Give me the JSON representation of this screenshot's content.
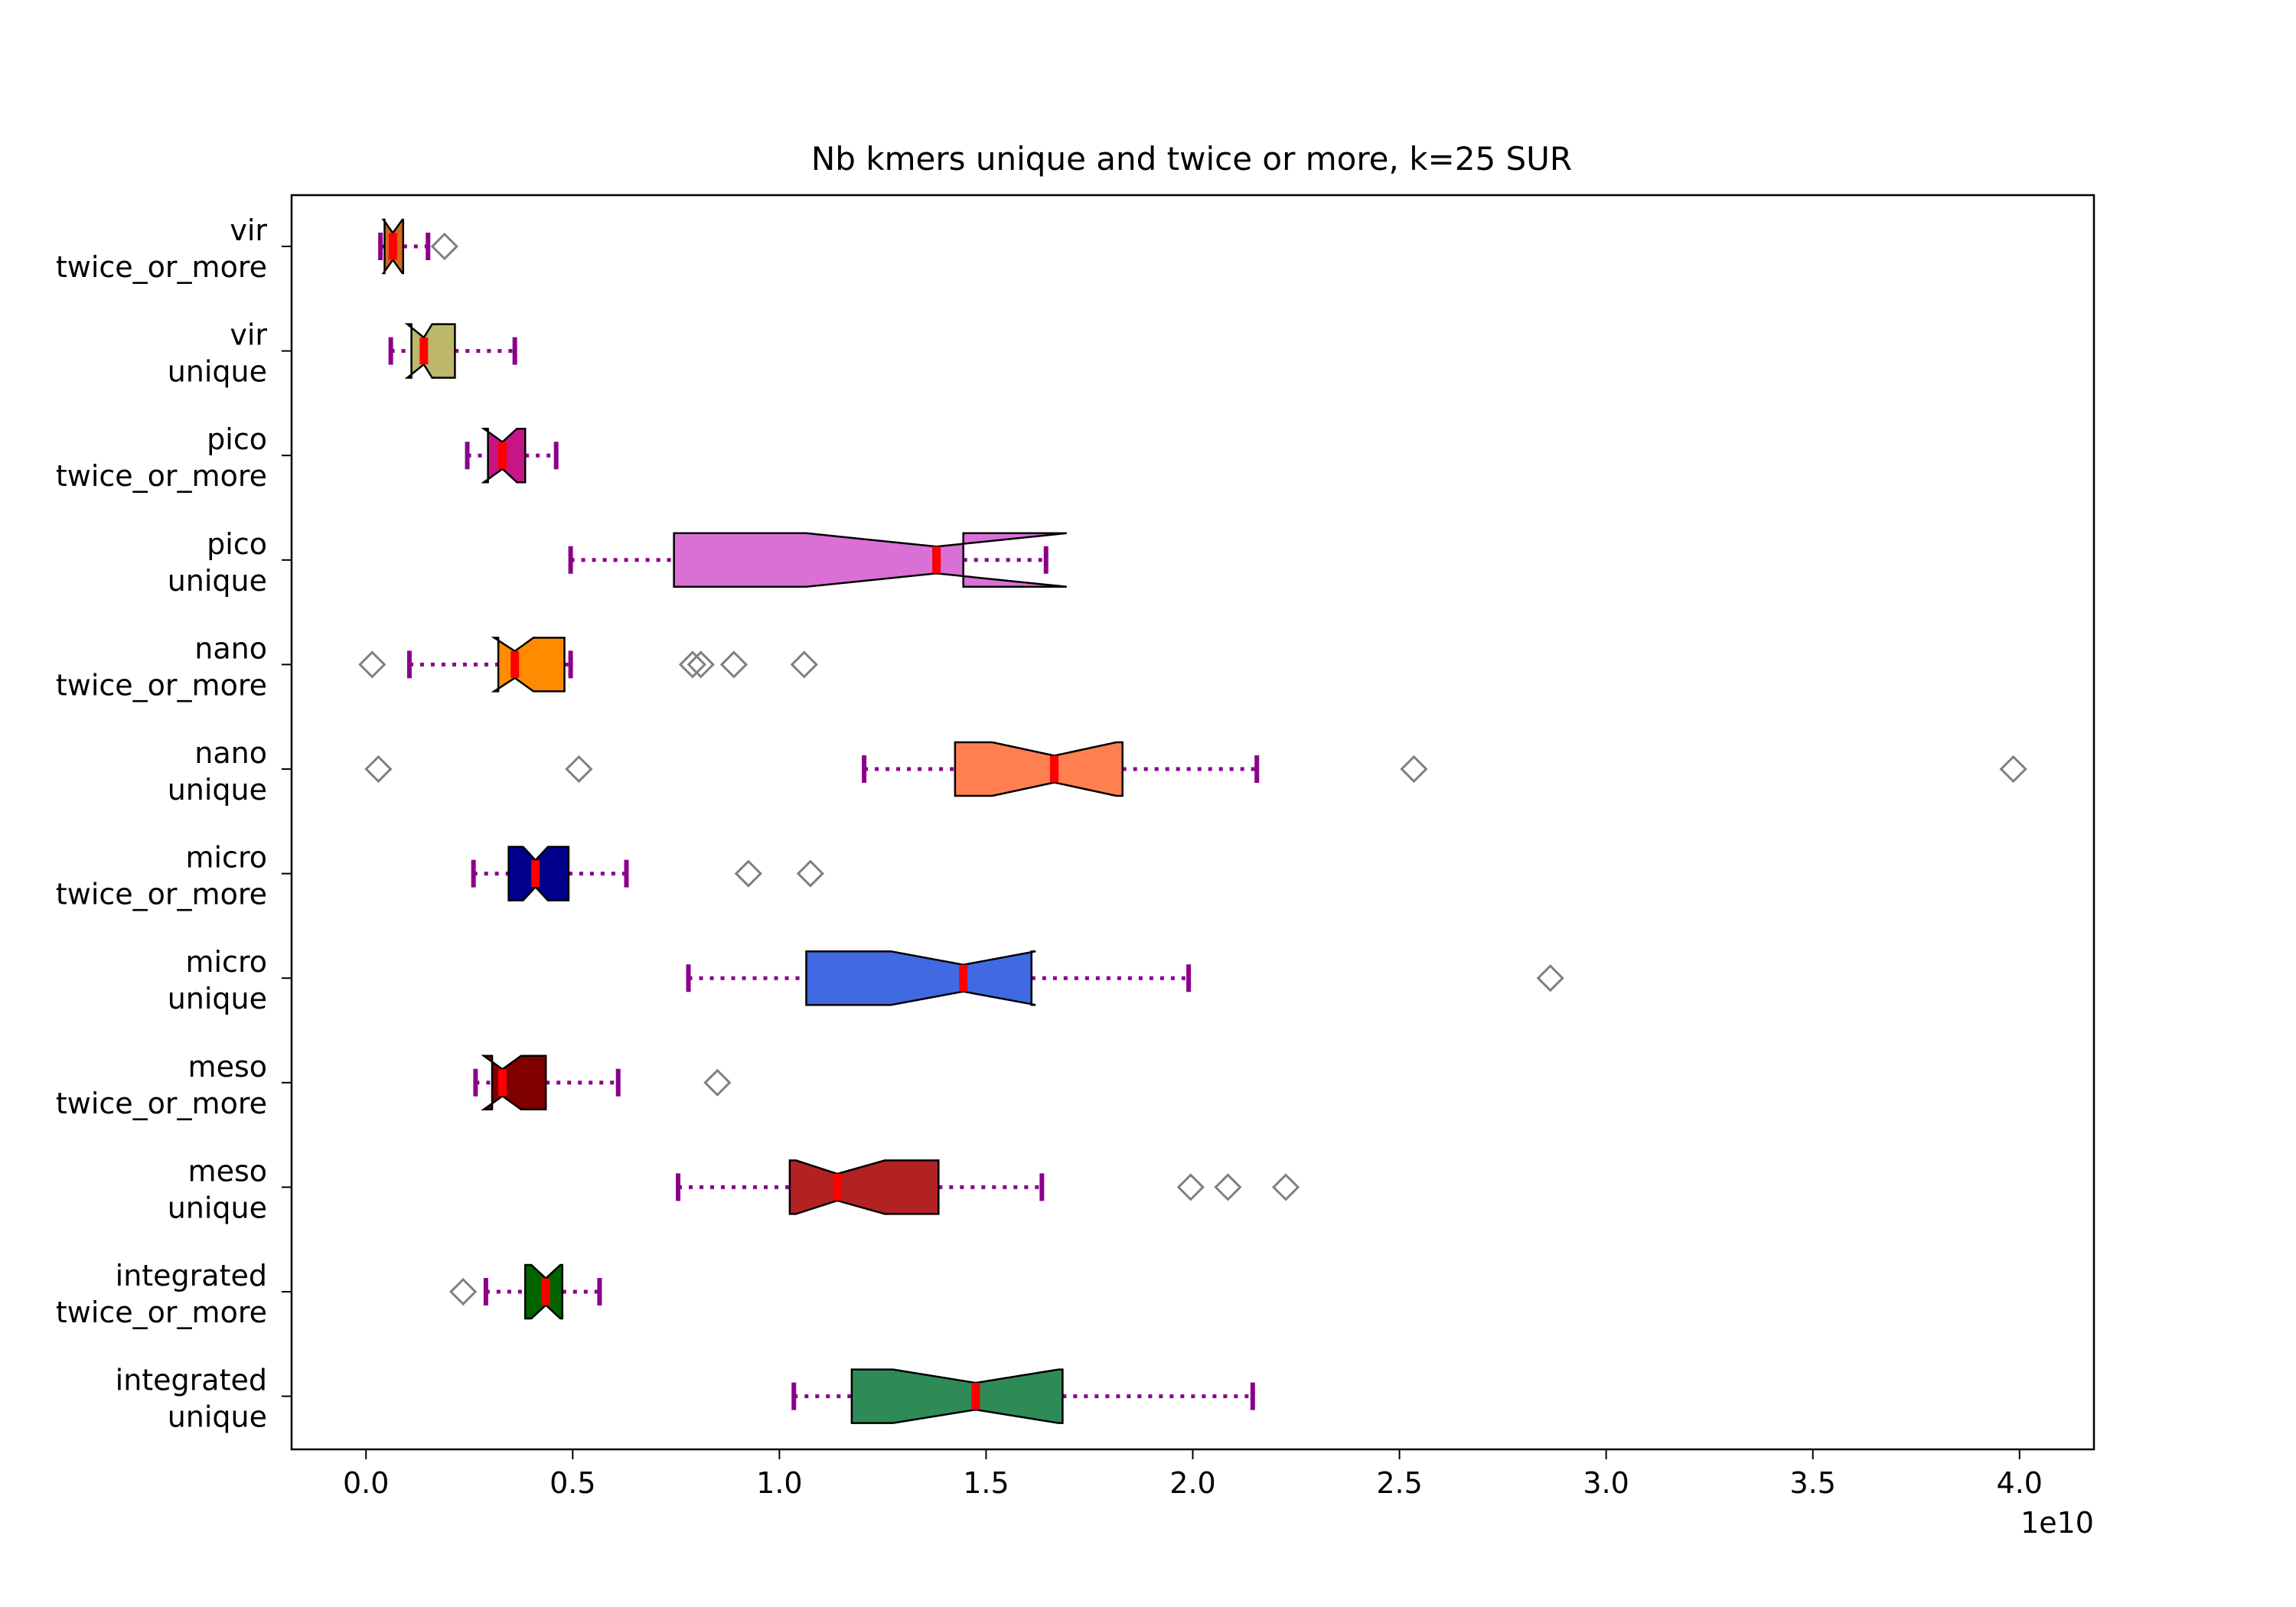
{
  "chart_data": {
    "type": "boxplot",
    "orientation": "horizontal",
    "title": "Nb kmers unique and twice or more, k=25 SUR",
    "x_axis": {
      "lim": [
        -0.18,
        4.18
      ],
      "ticks": [
        0.0,
        0.5,
        1.0,
        1.5,
        2.0,
        2.5,
        3.0,
        3.5,
        4.0
      ],
      "tick_labels": [
        "0.0",
        "0.5",
        "1.0",
        "1.5",
        "2.0",
        "2.5",
        "3.0",
        "3.5",
        "4.0"
      ],
      "offset_label": "1e10"
    },
    "grid": false,
    "legend": "none",
    "whisker_color": "#8b008b",
    "median_color": "#ff0000",
    "flier_color": "#808080",
    "series": [
      {
        "label": [
          "vir",
          "twice_or_more"
        ],
        "color": "#d2691e",
        "q1": 0.045,
        "median": 0.065,
        "q3": 0.09,
        "notch": [
          0.042,
          0.088
        ],
        "whislo": 0.035,
        "whishi": 0.15,
        "fliers": [
          0.19
        ]
      },
      {
        "label": [
          "vir",
          "unique"
        ],
        "color": "#bdb76b",
        "q1": 0.11,
        "median": 0.14,
        "q3": 0.215,
        "notch": [
          0.1,
          0.16
        ],
        "whislo": 0.06,
        "whishi": 0.36,
        "fliers": []
      },
      {
        "label": [
          "pico",
          "twice_or_more"
        ],
        "color": "#c71585",
        "q1": 0.295,
        "median": 0.33,
        "q3": 0.385,
        "notch": [
          0.285,
          0.365
        ],
        "whislo": 0.245,
        "whishi": 0.46,
        "fliers": []
      },
      {
        "label": [
          "pico",
          "unique"
        ],
        "color": "#da70d6",
        "q1": 0.745,
        "median": 1.38,
        "q3": 1.445,
        "notch": [
          1.065,
          1.695
        ],
        "whislo": 0.495,
        "whishi": 1.645,
        "fliers": []
      },
      {
        "label": [
          "nano",
          "twice_or_more"
        ],
        "color": "#ff8c00",
        "q1": 0.32,
        "median": 0.36,
        "q3": 0.48,
        "notch": [
          0.31,
          0.405
        ],
        "whislo": 0.105,
        "whishi": 0.495,
        "fliers": [
          0.015,
          0.79,
          0.81,
          0.89,
          1.06
        ]
      },
      {
        "label": [
          "nano",
          "unique"
        ],
        "color": "#ff7f50",
        "q1": 1.425,
        "median": 1.665,
        "q3": 1.83,
        "notch": [
          1.515,
          1.815
        ],
        "whislo": 1.205,
        "whishi": 2.155,
        "fliers": [
          0.03,
          0.515,
          2.535,
          3.985
        ]
      },
      {
        "label": [
          "micro",
          "twice_or_more"
        ],
        "color": "#00008b",
        "q1": 0.345,
        "median": 0.41,
        "q3": 0.49,
        "notch": [
          0.38,
          0.44
        ],
        "whislo": 0.26,
        "whishi": 0.63,
        "fliers": [
          0.925,
          1.075
        ]
      },
      {
        "label": [
          "micro",
          "unique"
        ],
        "color": "#4169e1",
        "q1": 1.065,
        "median": 1.445,
        "q3": 1.61,
        "notch": [
          1.27,
          1.62
        ],
        "whislo": 0.78,
        "whishi": 1.99,
        "fliers": [
          2.865
        ]
      },
      {
        "label": [
          "meso",
          "twice_or_more"
        ],
        "color": "#800000",
        "q1": 0.305,
        "median": 0.33,
        "q3": 0.435,
        "notch": [
          0.285,
          0.375
        ],
        "whislo": 0.265,
        "whishi": 0.61,
        "fliers": [
          0.85
        ]
      },
      {
        "label": [
          "meso",
          "unique"
        ],
        "color": "#b22222",
        "q1": 1.025,
        "median": 1.14,
        "q3": 1.385,
        "notch": [
          1.04,
          1.255
        ],
        "whislo": 0.755,
        "whishi": 1.635,
        "fliers": [
          1.995,
          2.085,
          2.225
        ]
      },
      {
        "label": [
          "integrated",
          "twice_or_more"
        ],
        "color": "#006400",
        "q1": 0.385,
        "median": 0.435,
        "q3": 0.475,
        "notch": [
          0.4,
          0.47
        ],
        "whislo": 0.29,
        "whishi": 0.565,
        "fliers": [
          0.235
        ]
      },
      {
        "label": [
          "integrated",
          "unique"
        ],
        "color": "#2e8b57",
        "q1": 1.175,
        "median": 1.475,
        "q3": 1.685,
        "notch": [
          1.275,
          1.675
        ],
        "whislo": 1.035,
        "whishi": 2.145,
        "fliers": []
      }
    ]
  }
}
